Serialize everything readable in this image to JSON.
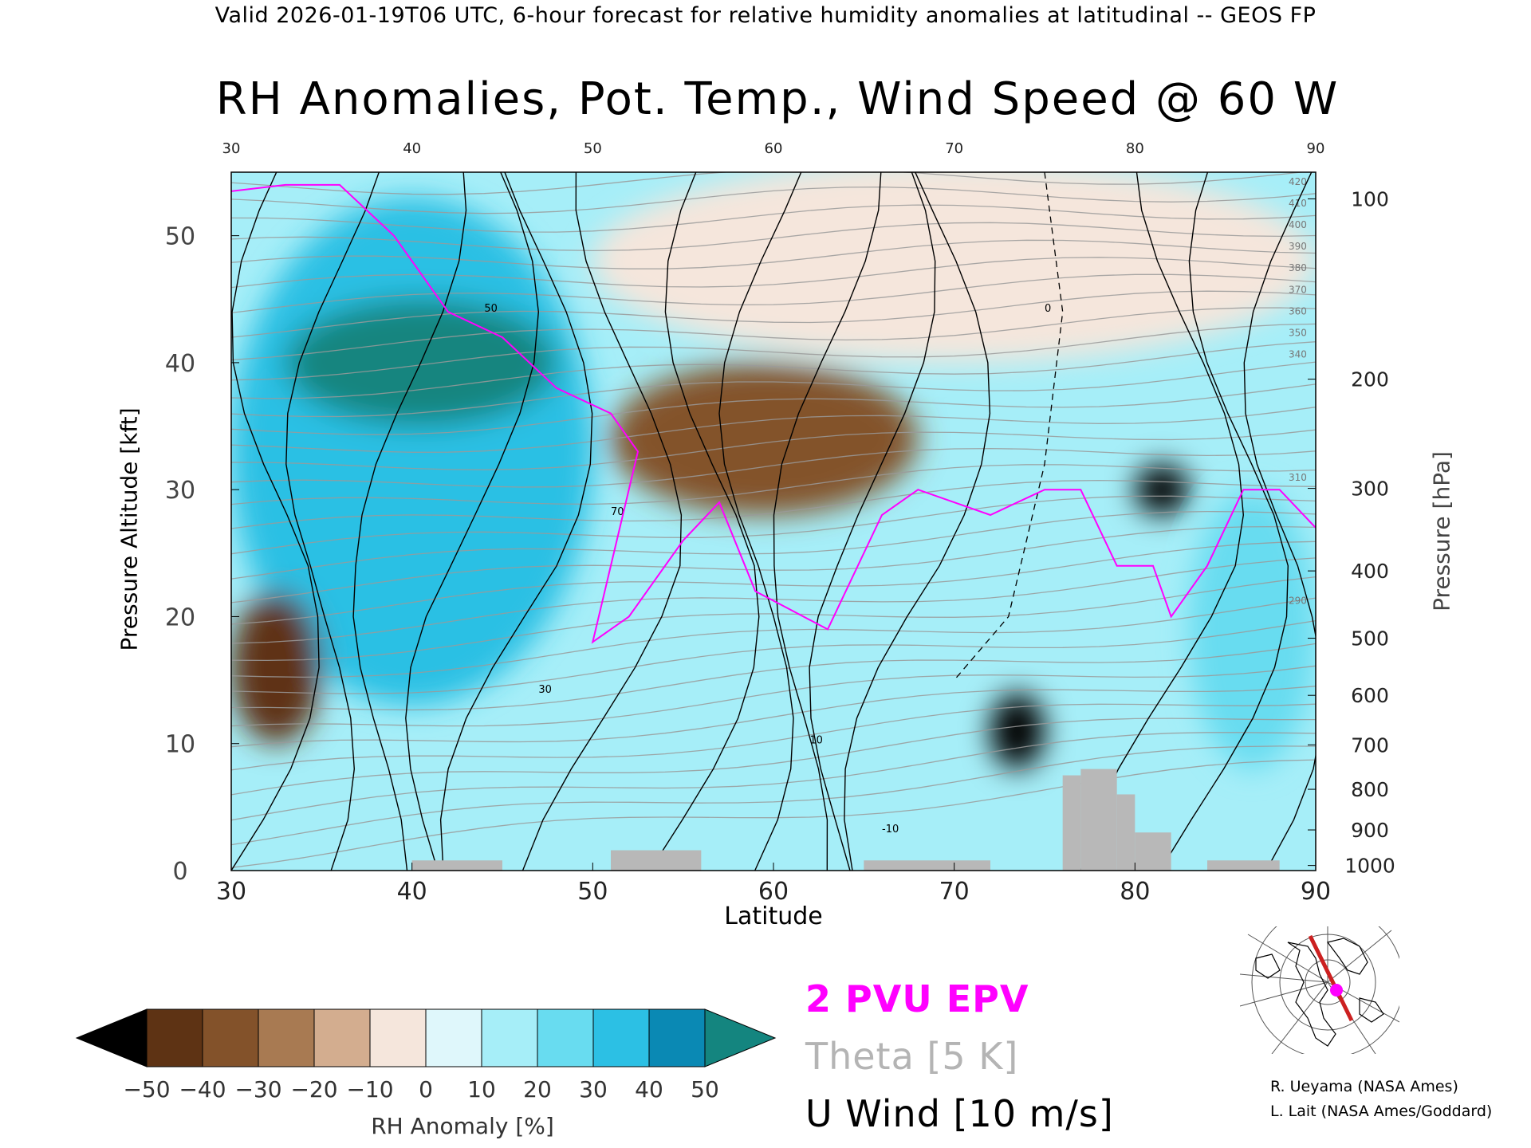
{
  "header": "Valid 2026-01-19T06 UTC, 6-hour forecast for relative humidity anomalies at latitudinal -- GEOS FP",
  "chart_data": {
    "type": "heatmap",
    "title": "RH Anomalies, Pot. Temp., Wind Speed @ 60 W",
    "xlabel": "Latitude",
    "ylabel": "Pressure Altitude [kft]",
    "ylabel_right": "Pressure [hPa]",
    "xlim": [
      30,
      90
    ],
    "ylim": [
      0,
      55
    ],
    "x_ticks": [
      "30",
      "40",
      "50",
      "60",
      "70",
      "80",
      "90"
    ],
    "x_ticks_top": [
      "30",
      "40",
      "50",
      "60",
      "70",
      "80",
      "90"
    ],
    "y_ticks": [
      "0",
      "10",
      "20",
      "30",
      "40",
      "50"
    ],
    "pressure_ticks": [
      {
        "label": "100",
        "kft": 52.9
      },
      {
        "label": "200",
        "kft": 38.7
      },
      {
        "label": "300",
        "kft": 30.1
      },
      {
        "label": "400",
        "kft": 23.6
      },
      {
        "label": "500",
        "kft": 18.3
      },
      {
        "label": "600",
        "kft": 13.8
      },
      {
        "label": "700",
        "kft": 9.9
      },
      {
        "label": "800",
        "kft": 6.4
      },
      {
        "label": "900",
        "kft": 3.2
      },
      {
        "label": "1000",
        "kft": 0.4
      }
    ],
    "colorbar": {
      "label": "RH Anomaly [%]",
      "ticks": [
        "−50",
        "−40",
        "−30",
        "−20",
        "−10",
        "0",
        "10",
        "20",
        "30",
        "40",
        "50"
      ],
      "colors": [
        "#3a1d08",
        "#5e3314",
        "#83522a",
        "#a87a52",
        "#d3ad8f",
        "#f5e6dc",
        "#dff7fb",
        "#a6eef8",
        "#68dcf0",
        "#2cc0e4",
        "#0a89b4",
        "#0d7d80"
      ],
      "under_color": "#000000",
      "over_color": "#14857f"
    },
    "series": [
      {
        "name": "2 PVU EPV",
        "color": "#ff00ff"
      },
      {
        "name": "Theta [5 K]",
        "color": "#b0b0b0"
      },
      {
        "name": "U Wind [10 m/s]",
        "color": "#000000"
      }
    ],
    "theta_labels": [
      "420",
      "410",
      "400",
      "390",
      "380",
      "370",
      "360",
      "350",
      "340",
      "310",
      "290"
    ],
    "wind_labels": [
      "50",
      "30",
      "10",
      "0",
      "-10",
      "70"
    ],
    "rh_anomaly_regions": [
      {
        "lat": [
          30,
          50
        ],
        "kft": [
          13,
          53
        ],
        "value": 35
      },
      {
        "lat": [
          33,
          48
        ],
        "kft": [
          35,
          45
        ],
        "value": 50
      },
      {
        "lat": [
          30,
          35
        ],
        "kft": [
          10,
          22
        ],
        "value": -45
      },
      {
        "lat": [
          51,
          68
        ],
        "kft": [
          28,
          40
        ],
        "value": -35
      },
      {
        "lat": [
          72,
          75
        ],
        "kft": [
          8,
          14
        ],
        "value": -55
      },
      {
        "lat": [
          80,
          83
        ],
        "kft": [
          28,
          32
        ],
        "value": -55
      },
      {
        "lat": [
          50,
          90
        ],
        "kft": [
          40,
          56
        ],
        "value": -8
      },
      {
        "lat": [
          83,
          90
        ],
        "kft": [
          8,
          30
        ],
        "value": 25
      }
    ],
    "epv_2pvu": [
      [
        30,
        53.5
      ],
      [
        33,
        54
      ],
      [
        36,
        54
      ],
      [
        39,
        50
      ],
      [
        42,
        44
      ],
      [
        45,
        42
      ],
      [
        48,
        38
      ],
      [
        51,
        36
      ],
      [
        52.5,
        33
      ],
      [
        50,
        18
      ],
      [
        52,
        20
      ],
      [
        55,
        26
      ],
      [
        57,
        29
      ],
      [
        59,
        22
      ],
      [
        63,
        19
      ],
      [
        66,
        28
      ],
      [
        68,
        30
      ],
      [
        72,
        28
      ],
      [
        75,
        30
      ],
      [
        77,
        30
      ],
      [
        79,
        24
      ],
      [
        81,
        24
      ],
      [
        82,
        20
      ],
      [
        84,
        24
      ],
      [
        86,
        30
      ],
      [
        88,
        30
      ],
      [
        90,
        27
      ]
    ],
    "wind_zero": [
      [
        75,
        55
      ],
      [
        76,
        44
      ],
      [
        75,
        32
      ],
      [
        73,
        20
      ],
      [
        70,
        15
      ]
    ]
  },
  "legend": {
    "epv": "2 PVU EPV",
    "theta": "Theta [5 K]",
    "uwind": "U Wind [10 m/s]"
  },
  "credits": {
    "line1": "R. Ueyama (NASA Ames)",
    "line2": "L. Lait (NASA Ames/Goddard)"
  },
  "inset_map": {
    "marker_color": "#ff00ff",
    "track_color": "#cc2020"
  }
}
